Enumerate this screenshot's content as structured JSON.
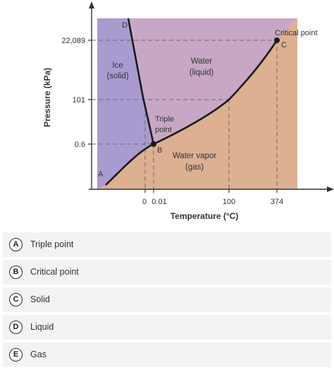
{
  "diagram": {
    "ylabel": "Pressure (kPa)",
    "xlabel": "Temperature (°C)",
    "y_ticks": [
      "22,089",
      "101",
      "0.6"
    ],
    "x_ticks": [
      "0",
      "0.01",
      "100",
      "374"
    ],
    "points": {
      "A": "A",
      "B": "B",
      "C": "C",
      "D": "D",
      "critical": "Critical point",
      "triple_line1": "Triple",
      "triple_line2": "point"
    },
    "regions": {
      "ice_line1": "Ice",
      "ice_line2": "(solid)",
      "water_line1": "Water",
      "water_line2": "(liquid)",
      "vapor_line1": "Water vapor",
      "vapor_line2": "(gas)"
    },
    "colors": {
      "solid": "#a99bd0",
      "liquid": "#c7a7c5",
      "gas": "#ddb091",
      "curve": "#1a1a1a"
    }
  },
  "options": [
    {
      "letter": "A",
      "text": "Triple point"
    },
    {
      "letter": "B",
      "text": "Critical point"
    },
    {
      "letter": "C",
      "text": "Solid"
    },
    {
      "letter": "D",
      "text": "Liquid"
    },
    {
      "letter": "E",
      "text": "Gas"
    }
  ]
}
